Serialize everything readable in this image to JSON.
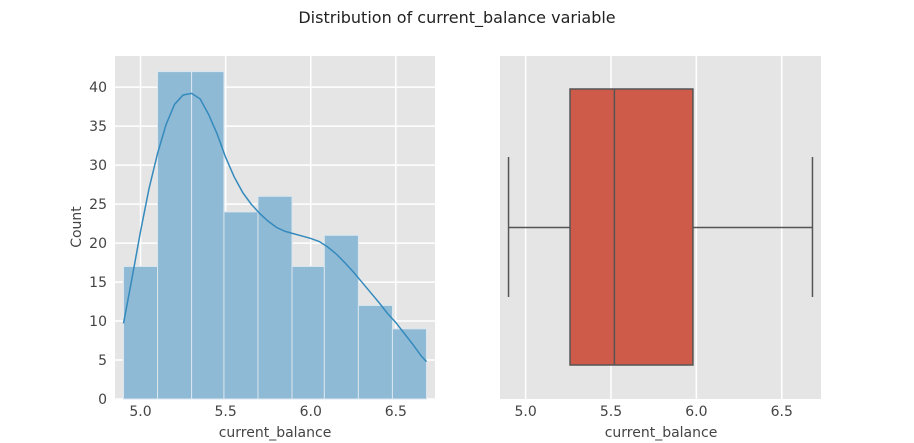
{
  "figure": {
    "title": "Distribution of current_balance variable",
    "background": "#ffffff",
    "panel_background": "#e5e5e5",
    "grid_color": "#ffffff"
  },
  "chart_data": [
    {
      "type": "bar",
      "subtype": "histogram_with_kde",
      "title": "",
      "xlabel": "current_balance",
      "ylabel": "Count",
      "xlim": [
        4.85,
        6.73
      ],
      "ylim": [
        0,
        44
      ],
      "xticks": [
        5.0,
        5.5,
        6.0,
        6.5
      ],
      "xtick_labels": [
        "5.0",
        "5.5",
        "6.0",
        "6.5"
      ],
      "yticks": [
        0,
        5,
        10,
        15,
        20,
        25,
        30,
        35,
        40
      ],
      "ytick_labels": [
        "0",
        "5",
        "10",
        "15",
        "20",
        "25",
        "30",
        "35",
        "40"
      ],
      "grid": true,
      "bar_color": "#8fbad5",
      "kde_color": "#348abd",
      "bins": [
        {
          "start": 4.9,
          "end": 5.1,
          "count": 17
        },
        {
          "start": 5.1,
          "end": 5.3,
          "count": 42
        },
        {
          "start": 5.3,
          "end": 5.49,
          "count": 42
        },
        {
          "start": 5.49,
          "end": 5.69,
          "count": 24
        },
        {
          "start": 5.69,
          "end": 5.89,
          "count": 26
        },
        {
          "start": 5.89,
          "end": 6.08,
          "count": 17
        },
        {
          "start": 6.08,
          "end": 6.28,
          "count": 21
        },
        {
          "start": 6.28,
          "end": 6.48,
          "count": 12
        },
        {
          "start": 6.48,
          "end": 6.68,
          "count": 9
        }
      ],
      "kde": {
        "x": [
          4.9,
          4.95,
          5.0,
          5.05,
          5.1,
          5.15,
          5.2,
          5.25,
          5.3,
          5.35,
          5.4,
          5.45,
          5.5,
          5.55,
          5.6,
          5.65,
          5.7,
          5.75,
          5.8,
          5.85,
          5.9,
          5.95,
          6.0,
          6.05,
          6.1,
          6.15,
          6.2,
          6.25,
          6.3,
          6.35,
          6.4,
          6.45,
          6.5,
          6.55,
          6.6,
          6.65,
          6.68
        ],
        "y": [
          9.7,
          15.5,
          21.5,
          27.0,
          31.5,
          35.2,
          37.8,
          39.0,
          39.2,
          38.5,
          36.5,
          34.0,
          31.0,
          28.5,
          26.5,
          25.0,
          23.8,
          22.8,
          22.0,
          21.5,
          21.2,
          20.9,
          20.6,
          20.2,
          19.5,
          18.6,
          17.5,
          16.3,
          15.0,
          13.7,
          12.4,
          11.0,
          9.8,
          8.4,
          7.0,
          5.5,
          4.8
        ]
      }
    },
    {
      "type": "boxplot",
      "title": "",
      "xlabel": "current_balance",
      "ylabel": "",
      "xlim": [
        4.85,
        6.73
      ],
      "xticks": [
        5.0,
        5.5,
        6.0,
        6.5
      ],
      "xtick_labels": [
        "5.0",
        "5.5",
        "6.0",
        "6.5"
      ],
      "grid": true,
      "box_color": "#ce5b4a",
      "line_color": "#555555",
      "stats": {
        "min": 4.9,
        "q1": 5.26,
        "median": 5.52,
        "q3": 5.98,
        "max": 6.68
      }
    }
  ]
}
